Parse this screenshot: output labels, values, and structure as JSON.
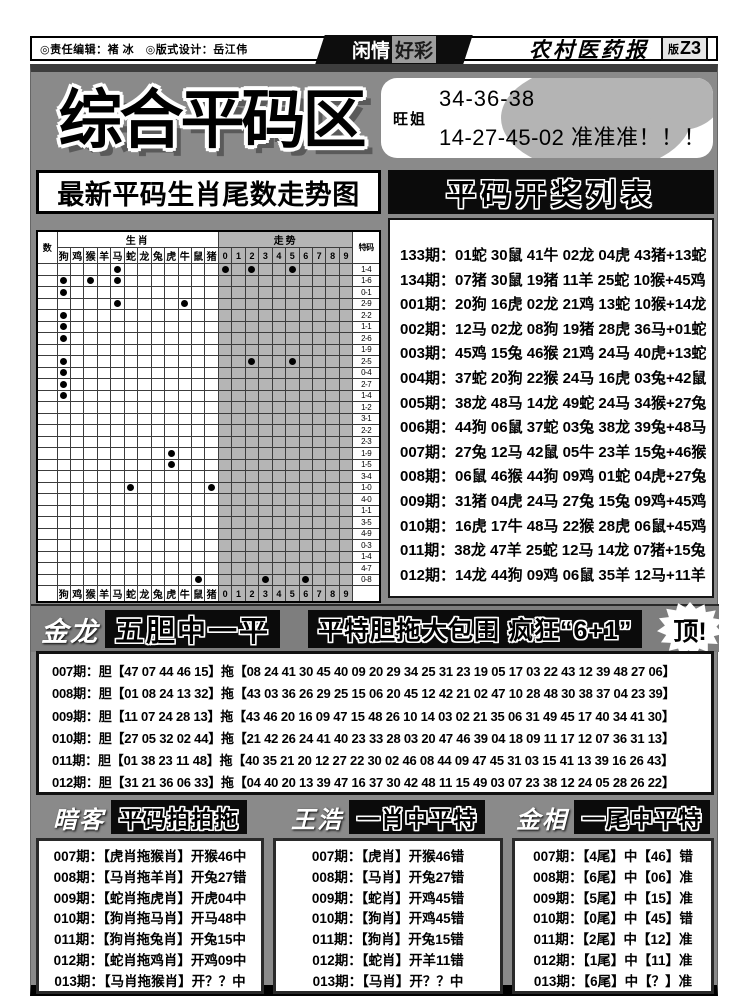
{
  "header": {
    "credits": "◎责任编辑：褚 冰　◎版式设计：岳江伟",
    "masthead_left": "闲情",
    "masthead_right": "好彩",
    "paper_name": "农村医药报",
    "edition_prefix": "版",
    "edition": "Z3"
  },
  "hero": {
    "title": "综合平码区",
    "bubble": {
      "name": "旺姐",
      "line1": "34-36-38",
      "line2": "14-27-45-02 准准准！！！"
    }
  },
  "chart_section": {
    "title": "最新平码生肖尾数走势图"
  },
  "results": {
    "title": "平码开奖列表",
    "rows": [
      "133期：01蛇 30鼠 41牛 02龙 04虎 43猪+13蛇",
      "134期：07猪 30鼠 19猪 11羊 25蛇 10猴+45鸡",
      "001期：20狗 16虎 02龙 21鸡 13蛇 10猴+14龙",
      "002期：12马 02龙 08狗 19猪 28虎 36马+01蛇",
      "003期：45鸡 15兔 46猴 21鸡 24马 40虎+13蛇",
      "004期：37蛇 20狗 22猴 24马 16虎 03兔+42鼠",
      "005期：38龙 48马 14龙 49蛇 24马 34猴+27兔",
      "006期：44狗 06鼠 37蛇 03兔 38龙 39兔+48马",
      "007期：27兔 12马 42鼠 05牛 23羊 15兔+46猴",
      "008期：06鼠 46猴 44狗 09鸡 01蛇 04虎+27兔",
      "009期：31猪 04虎 24马 27兔 15兔 09鸡+45鸡",
      "010期：16虎 17牛 48马 22猴 28虎 06鼠+45鸡",
      "011期：38龙 47羊 25蛇 12马 14龙 07猪+15兔",
      "012期：14龙 44狗 09鸡 06鼠 35羊 12马+11羊"
    ]
  },
  "chart_data": {
    "type": "table",
    "title": "最新平码生肖尾数走势图",
    "corner_label": "数",
    "zodiac_group_header": "生肖",
    "digit_group_header": "走势",
    "special_header": "特码",
    "zodiac_columns": [
      "狗",
      "鸡",
      "猴",
      "羊",
      "马",
      "蛇",
      "龙",
      "兔",
      "虎",
      "牛",
      "鼠",
      "猪"
    ],
    "digit_columns": [
      "0",
      "1",
      "2",
      "3",
      "4",
      "5",
      "6",
      "7",
      "8",
      "9"
    ],
    "rows": [
      {
        "zodiac_dots": [
          4
        ],
        "digit_dots": [
          0,
          2,
          5
        ],
        "special": "1-4"
      },
      {
        "zodiac_dots": [
          0,
          2,
          4
        ],
        "digit_dots": [],
        "special": "1-6"
      },
      {
        "zodiac_dots": [
          0
        ],
        "digit_dots": [],
        "special": "0-1"
      },
      {
        "zodiac_dots": [
          4,
          9
        ],
        "digit_dots": [],
        "special": "2-9"
      },
      {
        "zodiac_dots": [
          0
        ],
        "digit_dots": [],
        "special": "2-2"
      },
      {
        "zodiac_dots": [
          0
        ],
        "digit_dots": [],
        "special": "1-1"
      },
      {
        "zodiac_dots": [
          0
        ],
        "digit_dots": [],
        "special": "2-6"
      },
      {
        "zodiac_dots": [],
        "digit_dots": [],
        "special": "1-9"
      },
      {
        "zodiac_dots": [
          0
        ],
        "digit_dots": [
          2,
          5
        ],
        "special": "2-5"
      },
      {
        "zodiac_dots": [
          0
        ],
        "digit_dots": [],
        "special": "0-4"
      },
      {
        "zodiac_dots": [
          0
        ],
        "digit_dots": [],
        "special": "2-7"
      },
      {
        "zodiac_dots": [
          0
        ],
        "digit_dots": [],
        "special": "1-4"
      },
      {
        "zodiac_dots": [],
        "digit_dots": [],
        "special": "1-2"
      },
      {
        "zodiac_dots": [],
        "digit_dots": [],
        "special": "3-1"
      },
      {
        "zodiac_dots": [],
        "digit_dots": [],
        "special": "2-2"
      },
      {
        "zodiac_dots": [],
        "digit_dots": [],
        "special": "2-3"
      },
      {
        "zodiac_dots": [
          8
        ],
        "digit_dots": [],
        "special": "1-9"
      },
      {
        "zodiac_dots": [
          8
        ],
        "digit_dots": [],
        "special": "1-5"
      },
      {
        "zodiac_dots": [],
        "digit_dots": [],
        "special": "3-4"
      },
      {
        "zodiac_dots": [
          5,
          11
        ],
        "digit_dots": [],
        "special": "1-0"
      },
      {
        "zodiac_dots": [],
        "digit_dots": [],
        "special": "4-0"
      },
      {
        "zodiac_dots": [],
        "digit_dots": [],
        "special": "1-1"
      },
      {
        "zodiac_dots": [],
        "digit_dots": [],
        "special": "3-5"
      },
      {
        "zodiac_dots": [],
        "digit_dots": [],
        "special": "4-9"
      },
      {
        "zodiac_dots": [],
        "digit_dots": [],
        "special": "0-3"
      },
      {
        "zodiac_dots": [],
        "digit_dots": [],
        "special": "1-4"
      },
      {
        "zodiac_dots": [],
        "digit_dots": [],
        "special": "4-7"
      },
      {
        "zodiac_dots": [
          10
        ],
        "digit_dots": [
          3,
          6
        ],
        "special": "0-8"
      }
    ]
  },
  "banner": {
    "name": "金龙",
    "box1": "五胆中一平",
    "box2": "平特胆拖大包围 疯狂“6+1”",
    "burst": "顶!"
  },
  "dantuo": {
    "rows": [
      "007期：胆【47 07 44 46 15】拖【08 24 41 30 45 40 09 20 29 34 25 31 23 19 05 17 03 22 43 12 39 48 27 06】",
      "008期：胆【01 08 24 13 32】拖【43 03 36 26 29 25 15 06 20 45 12 42 21 02 47 10 28 48 30 38 37 04 23 39】",
      "009期：胆【11 07 24 28 13】拖【43 46 20 16 09 47 15 48 26 10 14 03 02 21 35 06 31 49 45 17 40 34 41 30】",
      "010期：胆【27 05 32 02 44】拖【21 42 26 24 41 40 23 33 28 03 20 47 46 39 04 18 09 11 17 12 07 36 31 13】",
      "011期：胆【01 38 23 11 48】拖【40 35 21 20 12 27 22 30 02 46 08 44 09 47 45 31 03 15 41 13 39 16 26 43】",
      "012期：胆【31 21 36 06 33】拖【04 40 20 13 39 47 16 37 30 42 48 11 15 49 03 07 23 38 12 24 05 28 26 22】"
    ]
  },
  "tips": [
    {
      "name": "暗客",
      "title": "平码拍拍拖",
      "rows": [
        "007期：【虎肖拖猴肖】开猴46中",
        "008期：【马肖拖羊肖】开兔27错",
        "009期：【蛇肖拖虎肖】开虎04中",
        "010期：【狗肖拖马肖】开马48中",
        "011期：【狗肖拖兔肖】开兔15中",
        "012期：【蛇肖拖鸡肖】开鸡09中",
        "013期：【马肖拖猴肖】开？？中"
      ]
    },
    {
      "name": "王浩",
      "title": "一肖中平特",
      "rows": [
        "007期：【虎肖】开猴46错",
        "008期：【马肖】开兔27错",
        "009期：【蛇肖】开鸡45错",
        "010期：【狗肖】开鸡45错",
        "011期：【狗肖】开兔15错",
        "012期：【蛇肖】开羊11错",
        "013期：【马肖】开？？中"
      ]
    },
    {
      "name": "金相",
      "title": "一尾中平特",
      "rows": [
        "007期：【4尾】中【46】错",
        "008期：【6尾】中【06】准",
        "009期：【5尾】中【15】准",
        "010期：【0尾】中【45】错",
        "011期：【2尾】中【12】准",
        "012期：【1尾】中【11】准",
        "013期：【6尾】中【？】准"
      ]
    }
  ],
  "colors": {
    "panel_gray": "#8a8a8a",
    "trend_gray": "#b5b5b5",
    "box_black": "#0b0b0b"
  }
}
